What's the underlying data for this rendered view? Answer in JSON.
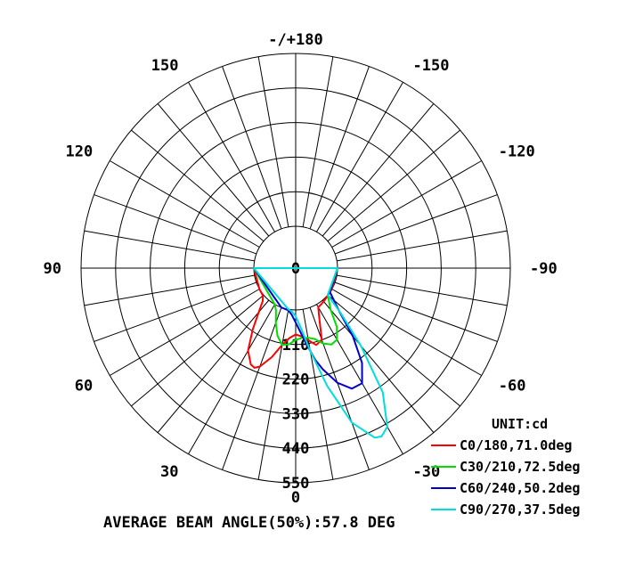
{
  "chart_data": {
    "type": "polar",
    "title": "",
    "unit_label": "UNIT:cd",
    "footer": "AVERAGE BEAM ANGLE(50%):57.8 DEG",
    "radial_ticks": [
      "0",
      "110",
      "220",
      "330",
      "440",
      "550"
    ],
    "radial_values": [
      0,
      110,
      220,
      330,
      440,
      550
    ],
    "radial_max": 550,
    "angle_labels": [
      {
        "angle": 180,
        "text": "-/+180"
      },
      {
        "angle": 150,
        "text": "150"
      },
      {
        "angle": 120,
        "text": "120"
      },
      {
        "angle": 90,
        "text": "90"
      },
      {
        "angle": 60,
        "text": "60"
      },
      {
        "angle": 30,
        "text": "30"
      },
      {
        "angle": 0,
        "text": "0"
      },
      {
        "angle": -30,
        "text": "-30"
      },
      {
        "angle": -60,
        "text": "-60"
      },
      {
        "angle": -90,
        "text": "-90"
      },
      {
        "angle": -120,
        "text": "-120"
      },
      {
        "angle": -150,
        "text": "-150"
      }
    ],
    "series": [
      {
        "name": "C0/180,71.0deg",
        "color": "#ff0000",
        "points": [
          [
            -90,
            0
          ],
          [
            -60,
            0
          ],
          [
            -45,
            3
          ],
          [
            -35,
            8
          ],
          [
            -30,
            10
          ],
          [
            -25,
            45
          ],
          [
            -20,
            110
          ],
          [
            -15,
            120
          ],
          [
            -10,
            100
          ],
          [
            -5,
            85
          ],
          [
            0,
            78
          ],
          [
            5,
            90
          ],
          [
            10,
            115
          ],
          [
            15,
            160
          ],
          [
            20,
            200
          ],
          [
            22.5,
            210
          ],
          [
            25,
            205
          ],
          [
            30,
            170
          ],
          [
            35,
            105
          ],
          [
            40,
            50
          ],
          [
            45,
            15
          ],
          [
            50,
            3
          ],
          [
            60,
            0
          ],
          [
            90,
            0
          ]
        ]
      },
      {
        "name": "C30/210,72.5deg",
        "color": "#00dd00",
        "points": [
          [
            -90,
            0
          ],
          [
            -50,
            0
          ],
          [
            -40,
            40
          ],
          [
            -35,
            95
          ],
          [
            -30,
            130
          ],
          [
            -25,
            135
          ],
          [
            -20,
            122
          ],
          [
            -15,
            100
          ],
          [
            -10,
            92
          ],
          [
            -5,
            90
          ],
          [
            0,
            95
          ],
          [
            5,
            110
          ],
          [
            10,
            115
          ],
          [
            15,
            90
          ],
          [
            20,
            52
          ],
          [
            25,
            15
          ],
          [
            30,
            0
          ],
          [
            90,
            0
          ]
        ]
      },
      {
        "name": "C60/240,50.2deg",
        "color": "#0000cc",
        "points": [
          [
            -90,
            0
          ],
          [
            -55,
            0
          ],
          [
            -45,
            65
          ],
          [
            -40,
            150
          ],
          [
            -35,
            235
          ],
          [
            -30,
            290
          ],
          [
            -25,
            290
          ],
          [
            -20,
            255
          ],
          [
            -15,
            200
          ],
          [
            -12,
            165
          ],
          [
            -8,
            110
          ],
          [
            -5,
            78
          ],
          [
            0,
            40
          ],
          [
            5,
            15
          ],
          [
            10,
            3
          ],
          [
            20,
            0
          ],
          [
            90,
            0
          ]
        ]
      },
      {
        "name": "C90/270,37.5deg",
        "color": "#00dddd",
        "points": [
          [
            -90,
            0
          ],
          [
            -50,
            0
          ],
          [
            -45,
            70
          ],
          [
            -40,
            190
          ],
          [
            -35,
            350
          ],
          [
            -30,
            450
          ],
          [
            -27,
            468
          ],
          [
            -25,
            462
          ],
          [
            -20,
            390
          ],
          [
            -15,
            255
          ],
          [
            -10,
            135
          ],
          [
            -5,
            58
          ],
          [
            0,
            20
          ],
          [
            5,
            5
          ],
          [
            10,
            0
          ],
          [
            90,
            0
          ]
        ]
      }
    ]
  }
}
